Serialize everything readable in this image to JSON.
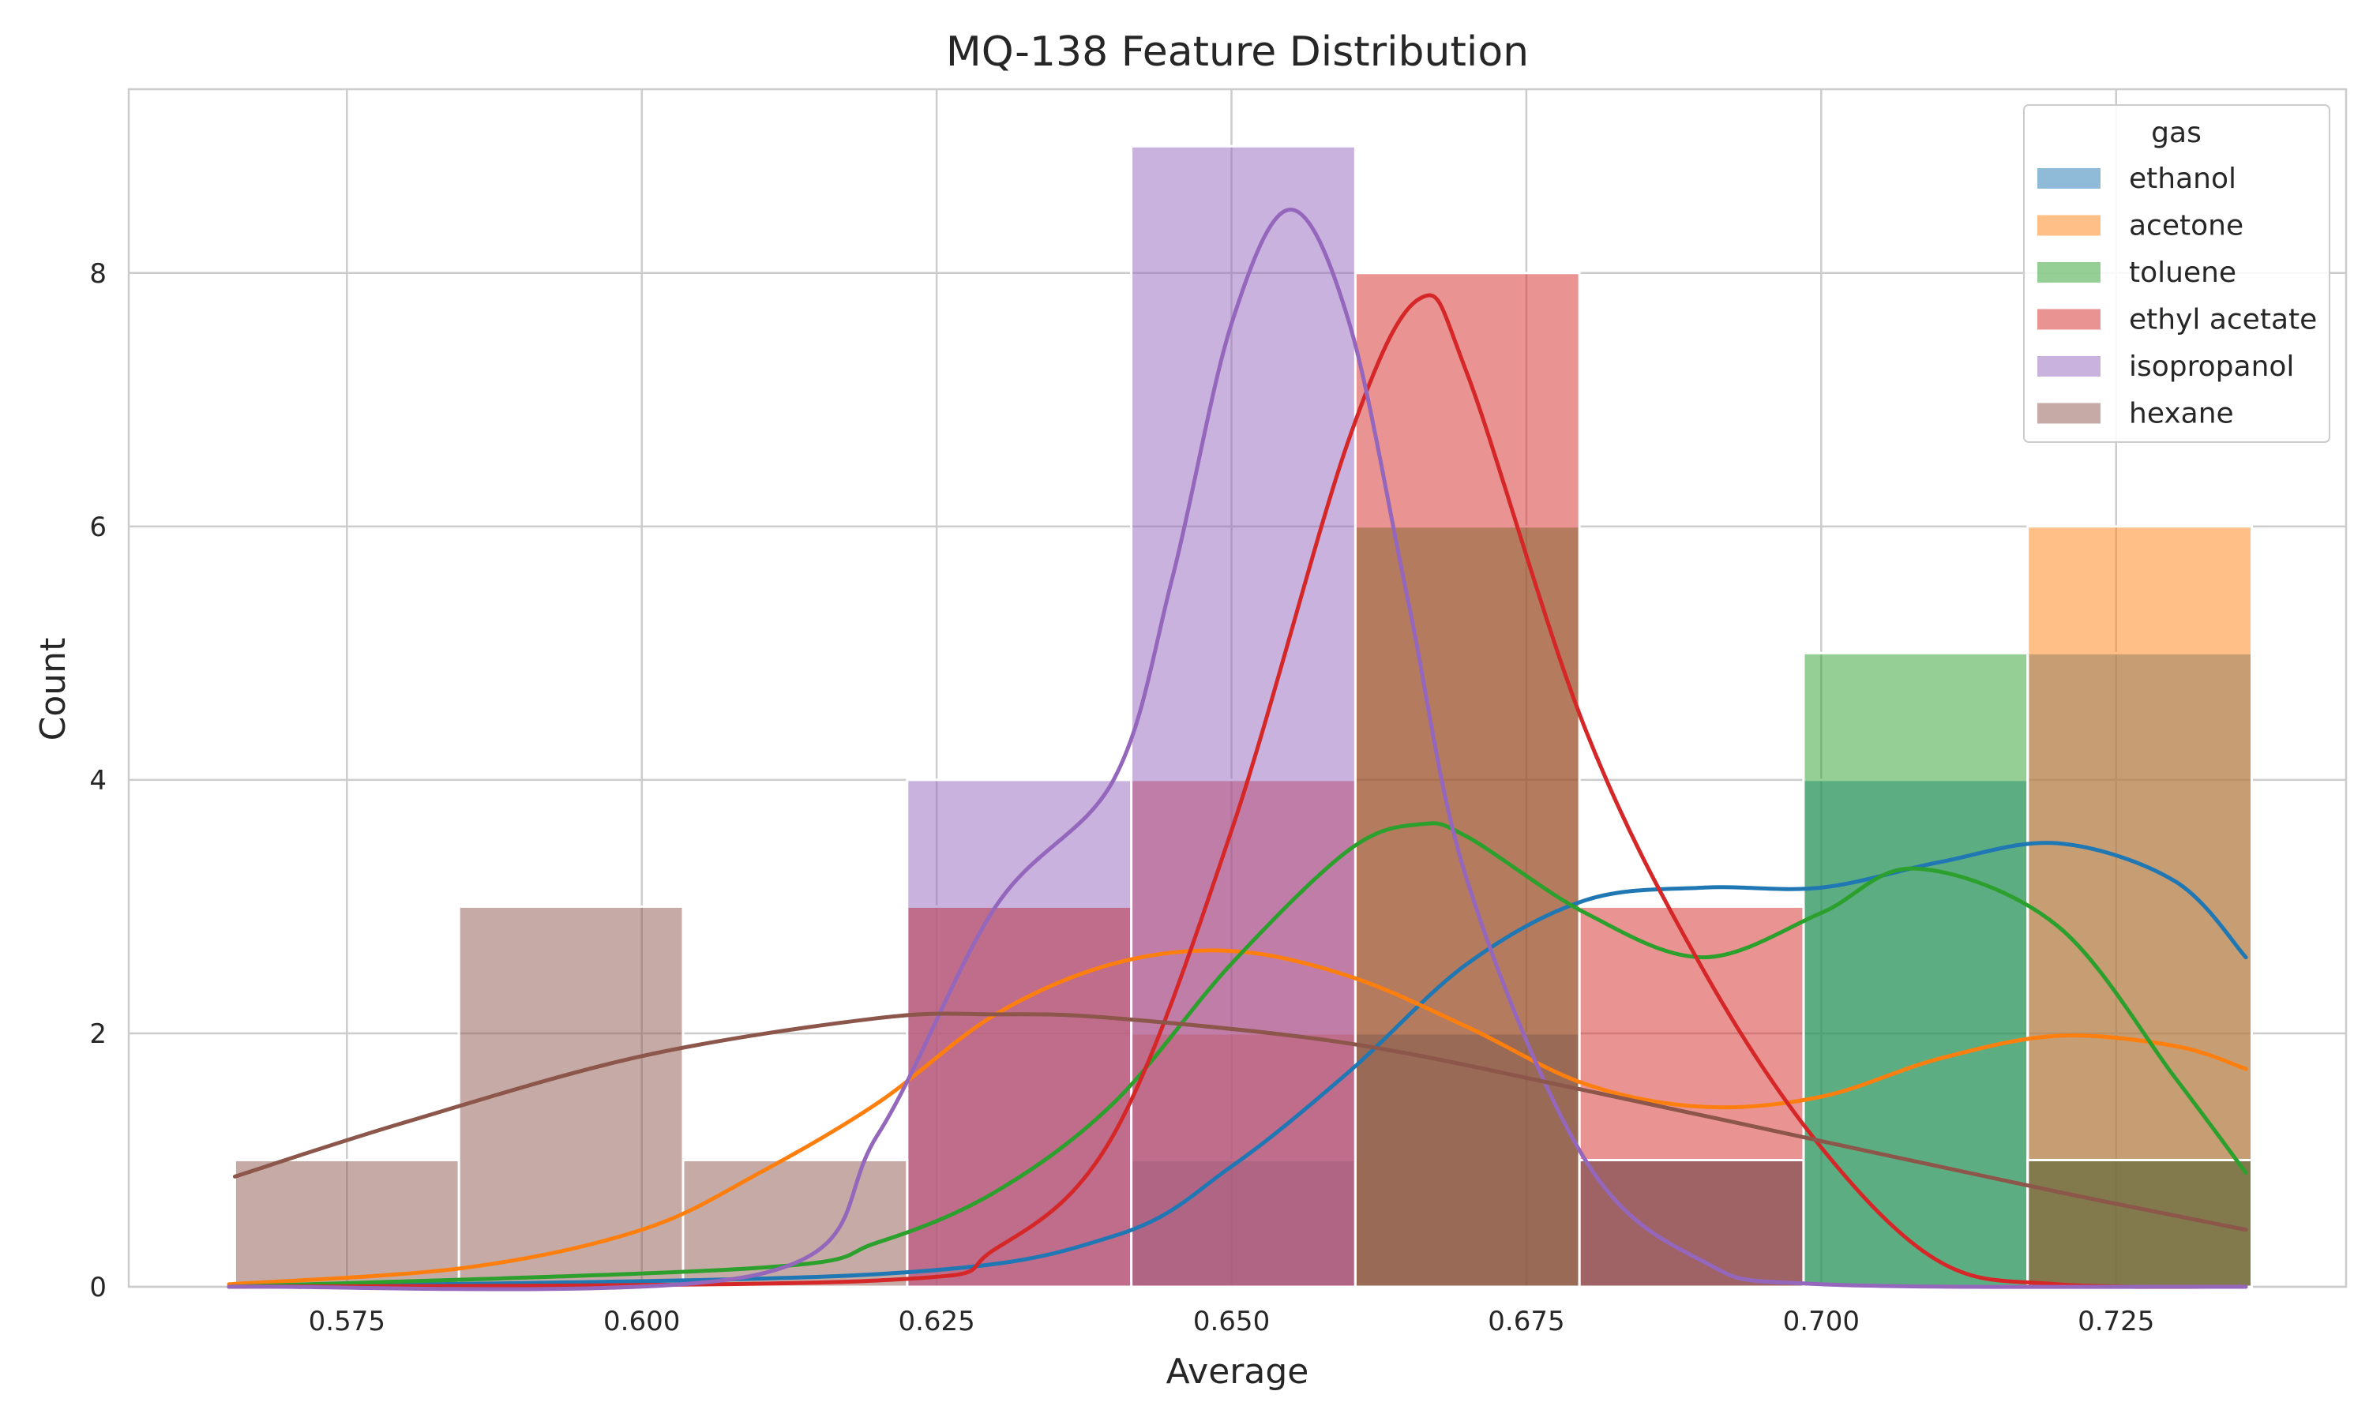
{
  "chart_data": {
    "type": "histogram",
    "title": "MQ-138 Feature Distribution",
    "xlabel": "Average",
    "ylabel": "Count",
    "xlim": [
      0.5565,
      0.7445
    ],
    "ylim": [
      0,
      9.45
    ],
    "x_ticks": [
      0.575,
      0.6,
      0.625,
      0.65,
      0.675,
      0.7,
      0.725
    ],
    "x_tick_labels": [
      "0.575",
      "0.600",
      "0.625",
      "0.650",
      "0.675",
      "0.700",
      "0.725"
    ],
    "y_ticks": [
      0,
      2,
      4,
      6,
      8
    ],
    "y_tick_labels": [
      "0",
      "2",
      "4",
      "6",
      "8"
    ],
    "grid": true,
    "legend": {
      "title": "gas",
      "placement": "top-right",
      "entries": [
        "ethanol",
        "acetone",
        "toluene",
        "ethyl acetate",
        "isopropanol",
        "hexane"
      ]
    },
    "bin_edges": [
      0.5655,
      0.5845,
      0.6035,
      0.6225,
      0.6415,
      0.6605,
      0.6795,
      0.6985,
      0.7175,
      0.7365
    ],
    "series": [
      {
        "name": "ethanol",
        "color": "#1f77b4",
        "counts": [
          0,
          0,
          0,
          0,
          1,
          2,
          1,
          4,
          5
        ],
        "kde_x": [
          0.565,
          0.62,
          0.64,
          0.65,
          0.66,
          0.67,
          0.68,
          0.69,
          0.7,
          0.71,
          0.72,
          0.73,
          0.736
        ],
        "kde_y": [
          0,
          0.1,
          0.4,
          0.95,
          1.7,
          2.55,
          3.05,
          3.15,
          3.15,
          3.35,
          3.5,
          3.2,
          2.6
        ]
      },
      {
        "name": "acetone",
        "color": "#ff7f0e",
        "counts": [
          0,
          0,
          0,
          3,
          2,
          0,
          0,
          0,
          6
        ],
        "kde_x": [
          0.565,
          0.585,
          0.6,
          0.61,
          0.62,
          0.63,
          0.64,
          0.65,
          0.66,
          0.67,
          0.68,
          0.69,
          0.7,
          0.71,
          0.72,
          0.73,
          0.736
        ],
        "kde_y": [
          0.02,
          0.15,
          0.45,
          0.9,
          1.45,
          2.15,
          2.55,
          2.65,
          2.45,
          2.05,
          1.6,
          1.42,
          1.5,
          1.8,
          1.98,
          1.9,
          1.72
        ]
      },
      {
        "name": "toluene",
        "color": "#2ca02c",
        "counts": [
          0,
          0,
          0,
          0,
          0,
          6,
          0,
          5,
          1
        ],
        "kde_x": [
          0.565,
          0.61,
          0.62,
          0.63,
          0.64,
          0.65,
          0.66,
          0.666,
          0.67,
          0.68,
          0.69,
          0.7,
          0.708,
          0.72,
          0.73,
          0.736
        ],
        "kde_y": [
          0,
          0.15,
          0.35,
          0.75,
          1.45,
          2.55,
          3.45,
          3.65,
          3.55,
          2.95,
          2.6,
          2.95,
          3.3,
          2.85,
          1.65,
          0.9
        ]
      },
      {
        "name": "ethyl acetate",
        "color": "#d62728",
        "counts": [
          0,
          0,
          0,
          3,
          4,
          8,
          3,
          0,
          0
        ],
        "kde_x": [
          0.565,
          0.62,
          0.63,
          0.64,
          0.65,
          0.66,
          0.666,
          0.67,
          0.68,
          0.69,
          0.7,
          0.71,
          0.72,
          0.736
        ],
        "kde_y": [
          0,
          0.05,
          0.3,
          1.2,
          3.6,
          6.7,
          7.8,
          7.2,
          4.4,
          2.5,
          1.1,
          0.2,
          0.02,
          0
        ]
      },
      {
        "name": "isopropanol",
        "color": "#9467bd",
        "counts": [
          0,
          0,
          0,
          4,
          9,
          0,
          0,
          0,
          0
        ],
        "kde_x": [
          0.565,
          0.61,
          0.62,
          0.63,
          0.64,
          0.645,
          0.65,
          0.655,
          0.66,
          0.665,
          0.67,
          0.68,
          0.69,
          0.7,
          0.736
        ],
        "kde_y": [
          0,
          0.1,
          1.2,
          3.0,
          4.0,
          5.6,
          7.6,
          8.5,
          7.6,
          5.4,
          3.2,
          1.0,
          0.2,
          0.02,
          0
        ]
      },
      {
        "name": "hexane",
        "color": "#8c564b",
        "counts": [
          1,
          3,
          1,
          0,
          0,
          0,
          1,
          0,
          1
        ],
        "kde_x": [
          0.5655,
          0.58,
          0.6,
          0.62,
          0.63,
          0.64,
          0.66,
          0.68,
          0.7,
          0.72,
          0.736
        ],
        "kde_y": [
          0.87,
          1.3,
          1.82,
          2.12,
          2.15,
          2.12,
          1.92,
          1.55,
          1.15,
          0.75,
          0.45
        ]
      }
    ]
  }
}
